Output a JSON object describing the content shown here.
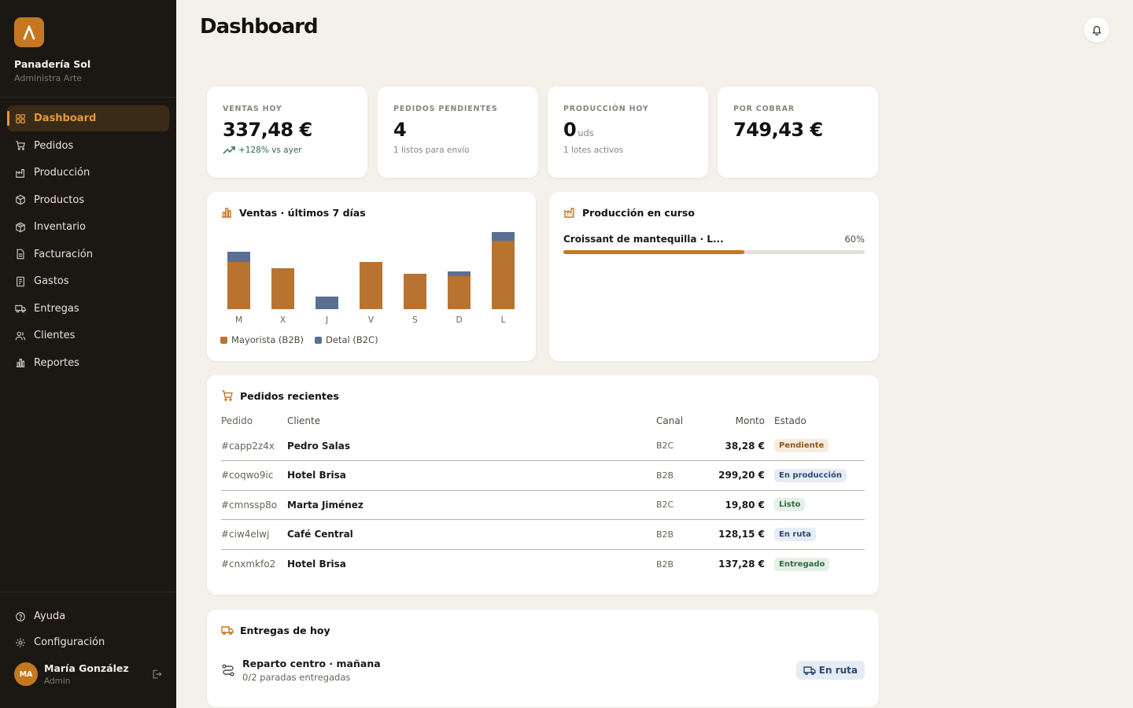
{
  "brand": {
    "logo_letter": "Λ",
    "name": "Panadería Sol",
    "subtitle": "Administra Arte"
  },
  "nav": [
    {
      "label": "Dashboard",
      "icon": "grid-icon",
      "active": true
    },
    {
      "label": "Pedidos",
      "icon": "cart-icon"
    },
    {
      "label": "Producción",
      "icon": "factory-icon"
    },
    {
      "label": "Productos",
      "icon": "box-icon"
    },
    {
      "label": "Inventario",
      "icon": "package-icon"
    },
    {
      "label": "Facturación",
      "icon": "file-icon"
    },
    {
      "label": "Gastos",
      "icon": "receipt-icon"
    },
    {
      "label": "Entregas",
      "icon": "truck-icon"
    },
    {
      "label": "Clientes",
      "icon": "users-icon"
    },
    {
      "label": "Reportes",
      "icon": "bar-chart-icon"
    }
  ],
  "bottom_nav": [
    {
      "label": "Ayuda",
      "icon": "help-icon"
    },
    {
      "label": "Configuración",
      "icon": "gear-icon"
    }
  ],
  "user": {
    "initials": "MA",
    "name": "María González",
    "role": "Admin"
  },
  "page": {
    "title": "Dashboard"
  },
  "kpis": [
    {
      "label": "VENTAS HOY",
      "value": "337,48 €",
      "unit": "",
      "sub": "+128% vs ayer",
      "trend": "up"
    },
    {
      "label": "PEDIDOS PENDIENTES",
      "value": "4",
      "unit": "",
      "sub": "1 listos para envío"
    },
    {
      "label": "PRODUCCIÓN HOY",
      "value": "0",
      "unit": "uds",
      "sub": "1 lotes activos"
    },
    {
      "label": "POR COBRAR",
      "value": "749,43 €",
      "unit": "",
      "sub": ""
    }
  ],
  "sales_chart": {
    "title": "Ventas · últimos 7 días"
  },
  "chart_data": {
    "type": "bar",
    "stacked": true,
    "categories": [
      "M",
      "X",
      "J",
      "V",
      "S",
      "D",
      "L"
    ],
    "series": [
      {
        "name": "Mayorista (B2B)",
        "color": "#b87330",
        "values": [
          60,
          52,
          0,
          60,
          45,
          42,
          87
        ]
      },
      {
        "name": "Detal (B2C)",
        "color": "#5b6f94",
        "values": [
          13,
          0,
          16,
          0,
          0,
          6,
          11
        ]
      }
    ],
    "ylim": [
      0,
      100
    ],
    "grid": false,
    "legend": "bottom-left"
  },
  "production": {
    "title": "Producción en curso",
    "items": [
      {
        "name": "Croissant de mantequilla · L...",
        "percent_label": "60%",
        "progress": 0.6
      }
    ]
  },
  "orders": {
    "title": "Pedidos recientes",
    "columns": {
      "id": "Pedido",
      "client": "Cliente",
      "channel": "Canal",
      "amount": "Monto",
      "status": "Estado"
    },
    "rows": [
      {
        "id": "#capp2z4x",
        "client": "Pedro Salas",
        "channel": "B2C",
        "amount": "38,28 €",
        "status": "Pendiente",
        "status_bg": "#f6ecde",
        "status_fg": "#8a5a1c"
      },
      {
        "id": "#coqwo9ic",
        "client": "Hotel Brisa",
        "channel": "B2B",
        "amount": "299,20 €",
        "status": "En producción",
        "status_bg": "#e6ecf3",
        "status_fg": "#2d4a74"
      },
      {
        "id": "#cmnssp8o",
        "client": "Marta Jiménez",
        "channel": "B2C",
        "amount": "19,80 €",
        "status": "Listo",
        "status_bg": "#e5efe6",
        "status_fg": "#2f6b45"
      },
      {
        "id": "#ciw4elwj",
        "client": "Café Central",
        "channel": "B2B",
        "amount": "128,15 €",
        "status": "En ruta",
        "status_bg": "#e6ecf3",
        "status_fg": "#2d4a74"
      },
      {
        "id": "#cnxmkfo2",
        "client": "Hotel Brisa",
        "channel": "B2B",
        "amount": "137,28 €",
        "status": "Entregado",
        "status_bg": "#e5efe6",
        "status_fg": "#2f6b45"
      }
    ]
  },
  "deliveries": {
    "title": "Entregas de hoy",
    "items": [
      {
        "name": "Reparto centro · mañana",
        "sub": "0/2 paradas entregadas",
        "status": "En ruta"
      }
    ]
  },
  "colors": {
    "accent": "#c5781f",
    "sidebar_bg": "#1b1814",
    "page_bg": "#f4f1ea"
  }
}
